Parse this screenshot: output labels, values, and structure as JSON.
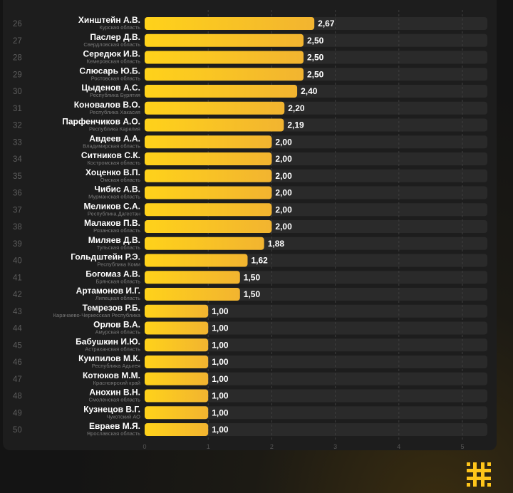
{
  "chart_data": {
    "type": "bar",
    "orientation": "horizontal",
    "xlim": [
      0,
      5
    ],
    "x_ticks": [
      0,
      1,
      2,
      3,
      4,
      5
    ],
    "grid": true,
    "bar_color": "#ffc51a",
    "track_color": "#2a2a2a",
    "rows": [
      {
        "rank": "26",
        "name": "Хинштейн А.В.",
        "region": "Курская область",
        "value": 2.67,
        "label": "2,67"
      },
      {
        "rank": "27",
        "name": "Паслер Д.В.",
        "region": "Свердловская область",
        "value": 2.5,
        "label": "2,50"
      },
      {
        "rank": "28",
        "name": "Середюк И.В.",
        "region": "Кемеровская область",
        "value": 2.5,
        "label": "2,50"
      },
      {
        "rank": "29",
        "name": "Слюсарь Ю.Б.",
        "region": "Ростовская область",
        "value": 2.5,
        "label": "2,50"
      },
      {
        "rank": "30",
        "name": "Цыденов А.С.",
        "region": "Республика Бурятия",
        "value": 2.4,
        "label": "2,40"
      },
      {
        "rank": "31",
        "name": "Коновалов В.О.",
        "region": "Республика Хакасия",
        "value": 2.2,
        "label": "2,20"
      },
      {
        "rank": "32",
        "name": "Парфенчиков А.О.",
        "region": "Республика Карелия",
        "value": 2.19,
        "label": "2,19"
      },
      {
        "rank": "33",
        "name": "Авдеев А.А.",
        "region": "Владимирская область",
        "value": 2.0,
        "label": "2,00"
      },
      {
        "rank": "34",
        "name": "Ситников С.К.",
        "region": "Костромская область",
        "value": 2.0,
        "label": "2,00"
      },
      {
        "rank": "35",
        "name": "Хоценко В.П.",
        "region": "Омская область",
        "value": 2.0,
        "label": "2,00"
      },
      {
        "rank": "36",
        "name": "Чибис А.В.",
        "region": "Мурманская область",
        "value": 2.0,
        "label": "2,00"
      },
      {
        "rank": "37",
        "name": "Меликов С.А.",
        "region": "Республика Дагестан",
        "value": 2.0,
        "label": "2,00"
      },
      {
        "rank": "38",
        "name": "Малаков П.В.",
        "region": "Рязанская область",
        "value": 2.0,
        "label": "2,00"
      },
      {
        "rank": "39",
        "name": "Миляев Д.В.",
        "region": "Тульская область",
        "value": 1.88,
        "label": "1,88"
      },
      {
        "rank": "40",
        "name": "Гольдштейн Р.Э.",
        "region": "Республика Коми",
        "value": 1.62,
        "label": "1,62"
      },
      {
        "rank": "41",
        "name": "Богомаз А.В.",
        "region": "Брянская область",
        "value": 1.5,
        "label": "1,50"
      },
      {
        "rank": "42",
        "name": "Артамонов И.Г.",
        "region": "Липецкая область",
        "value": 1.5,
        "label": "1,50"
      },
      {
        "rank": "43",
        "name": "Темрезов Р.Б.",
        "region": "Карачаево-Черкесская Республика",
        "value": 1.0,
        "label": "1,00"
      },
      {
        "rank": "44",
        "name": "Орлов В.А.",
        "region": "Амурская область",
        "value": 1.0,
        "label": "1,00"
      },
      {
        "rank": "45",
        "name": "Бабушкин И.Ю.",
        "region": "Астраханская область",
        "value": 1.0,
        "label": "1,00"
      },
      {
        "rank": "46",
        "name": "Кумпилов М.К.",
        "region": "Республика Адыгея",
        "value": 1.0,
        "label": "1,00"
      },
      {
        "rank": "47",
        "name": "Котюков М.М.",
        "region": "Красноярский край",
        "value": 1.0,
        "label": "1,00"
      },
      {
        "rank": "48",
        "name": "Анохин В.Н.",
        "region": "Смоленская область",
        "value": 1.0,
        "label": "1,00"
      },
      {
        "rank": "49",
        "name": "Кузнецов В.Г.",
        "region": "Чукотский АО",
        "value": 1.0,
        "label": "1,00"
      },
      {
        "rank": "50",
        "name": "Евраев М.Я.",
        "region": "Ярославская область",
        "value": 1.0,
        "label": "1,00"
      }
    ]
  },
  "logo": {
    "icon": "hash-cross-logo",
    "color": "#ffc51a"
  }
}
